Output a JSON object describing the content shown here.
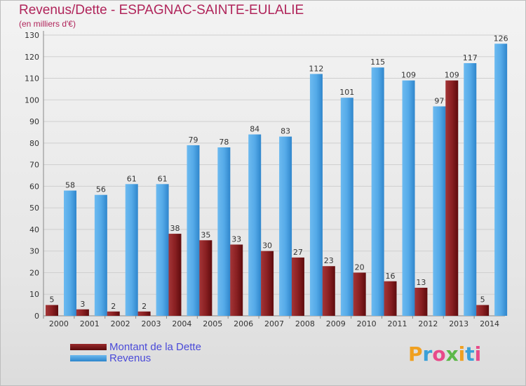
{
  "title": "Revenus/Dette - ESPAGNAC-SAINTE-EULALIE",
  "subtitle": "(en milliers d'€)",
  "chart_data": {
    "type": "bar",
    "categories": [
      "2000",
      "2001",
      "2002",
      "2003",
      "2004",
      "2005",
      "2006",
      "2007",
      "2008",
      "2009",
      "2010",
      "2011",
      "2012",
      "2013",
      "2014"
    ],
    "series": [
      {
        "name": "Montant de la Dette",
        "color": "#7a1416",
        "values": [
          5,
          3,
          2,
          2,
          38,
          35,
          33,
          30,
          27,
          23,
          20,
          16,
          13,
          109,
          5
        ]
      },
      {
        "name": "Revenus",
        "color": "#3d9be0",
        "values": [
          58,
          56,
          61,
          61,
          79,
          78,
          84,
          83,
          112,
          101,
          115,
          109,
          97,
          117,
          126
        ]
      }
    ],
    "yticks": [
      0,
      10,
      20,
      30,
      40,
      50,
      60,
      70,
      80,
      90,
      100,
      110,
      120,
      130
    ],
    "ylim": [
      0,
      130
    ],
    "grid": true,
    "legend": "bottom-left"
  },
  "legend": {
    "items": [
      {
        "label": "Montant de la Dette",
        "color": "#6b0f12"
      },
      {
        "label": "Revenus",
        "color": "#3d9be0"
      }
    ]
  },
  "logo": {
    "letters": [
      "P",
      "r",
      "o",
      "x",
      "i",
      "t",
      "i"
    ],
    "colors": [
      "#f0a020",
      "#3aa0d8",
      "#e84a8a",
      "#5cb848",
      "#f0a020",
      "#3aa0d8",
      "#e84a8a"
    ]
  }
}
